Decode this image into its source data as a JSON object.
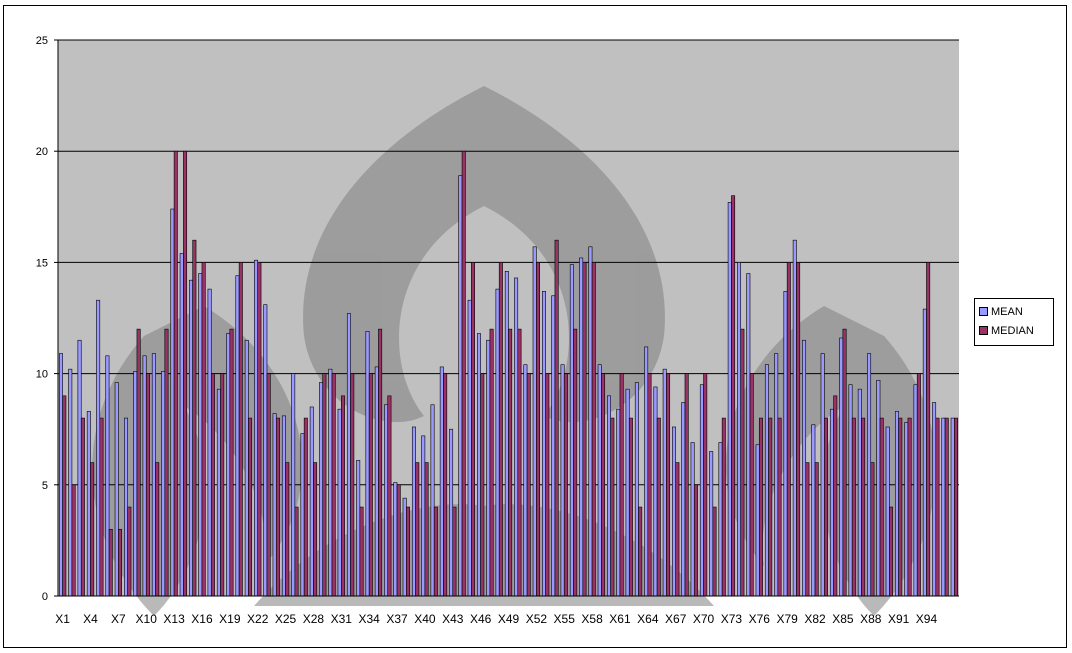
{
  "chart_data": {
    "type": "bar",
    "categories": [
      "X1",
      "X2",
      "X3",
      "X4",
      "X5",
      "X6",
      "X7",
      "X8",
      "X9",
      "X10",
      "X11",
      "X12",
      "X13",
      "X14",
      "X15",
      "X16",
      "X17",
      "X18",
      "X19",
      "X20",
      "X21",
      "X22",
      "X23",
      "X24",
      "X25",
      "X26",
      "X27",
      "X28",
      "X29",
      "X30",
      "X31",
      "X32",
      "X33",
      "X34",
      "X35",
      "X36",
      "X37",
      "X38",
      "X39",
      "X40",
      "X41",
      "X42",
      "X43",
      "X44",
      "X45",
      "X46",
      "X47",
      "X48",
      "X49",
      "X50",
      "X51",
      "X52",
      "X53",
      "X54",
      "X55",
      "X56",
      "X57",
      "X58",
      "X59",
      "X60",
      "X61",
      "X62",
      "X63",
      "X64",
      "X65",
      "X66",
      "X67",
      "X68",
      "X69",
      "X70",
      "X71",
      "X72",
      "X73",
      "X74",
      "X75",
      "X76",
      "X77",
      "X78",
      "X79",
      "X80",
      "X81",
      "X82",
      "X83",
      "X84",
      "X85",
      "X86",
      "X87",
      "X88",
      "X89",
      "X90",
      "X91",
      "X92",
      "X93",
      "X94",
      "X95",
      "X96",
      "X97"
    ],
    "visible_tick_labels": [
      "X1",
      "X4",
      "X7",
      "X10",
      "X13",
      "X16",
      "X19",
      "X22",
      "X25",
      "X28",
      "X31",
      "X34",
      "X37",
      "X40",
      "X43",
      "X46",
      "X49",
      "X52",
      "X55",
      "X58",
      "X61",
      "X64",
      "X67",
      "X70",
      "X73",
      "X76",
      "X79",
      "X82",
      "X85",
      "X88",
      "X91",
      "X94"
    ],
    "series": [
      {
        "name": "MEAN",
        "color": "#9999ff",
        "values": [
          10.9,
          10.2,
          11.5,
          8.3,
          13.3,
          10.8,
          9.6,
          8.0,
          10.1,
          10.8,
          10.9,
          10.1,
          17.4,
          15.4,
          14.2,
          14.5,
          13.8,
          9.3,
          11.8,
          14.4,
          11.5,
          15.1,
          13.1,
          8.2,
          8.1,
          10.0,
          7.3,
          8.5,
          9.6,
          10.2,
          8.4,
          12.7,
          6.1,
          11.9,
          10.3,
          8.6,
          5.1,
          4.4,
          7.6,
          7.2,
          8.6,
          10.3,
          7.5,
          18.9,
          13.3,
          11.8,
          11.5,
          13.8,
          14.6,
          14.3,
          10.4,
          15.7,
          13.7,
          13.5,
          10.4,
          14.9,
          15.2,
          15.7,
          10.4,
          9.0,
          8.4,
          9.3,
          9.6,
          11.2,
          9.4,
          10.2,
          7.6,
          8.7,
          6.9,
          9.5,
          6.5,
          6.9,
          17.7,
          15.0,
          14.5,
          6.8,
          10.4,
          10.9,
          13.7,
          16.0,
          11.5,
          7.7,
          10.9,
          8.4,
          11.6,
          9.5,
          9.3,
          10.9,
          9.7,
          7.6,
          8.3,
          7.8,
          9.5,
          12.9,
          8.7,
          8.0,
          8.0
        ]
      },
      {
        "name": "MEDIAN",
        "color": "#993366",
        "values": [
          9.0,
          5.0,
          8.0,
          6.0,
          8.0,
          3.0,
          3.0,
          4.0,
          12.0,
          10.0,
          6.0,
          12.0,
          20.0,
          20.0,
          16.0,
          15.0,
          10.0,
          10.0,
          12.0,
          15.0,
          8.0,
          15.0,
          10.0,
          8.0,
          6.0,
          4.0,
          8.0,
          6.0,
          10.0,
          10.0,
          9.0,
          10.0,
          4.0,
          10.0,
          12.0,
          9.0,
          5.0,
          4.0,
          6.0,
          6.0,
          4.0,
          10.0,
          4.0,
          20.0,
          15.0,
          10.0,
          12.0,
          15.0,
          12.0,
          12.0,
          10.0,
          15.0,
          10.0,
          16.0,
          10.0,
          12.0,
          15.0,
          15.0,
          10.0,
          8.0,
          10.0,
          8.0,
          4.0,
          10.0,
          8.0,
          10.0,
          6.0,
          10.0,
          5.0,
          10.0,
          4.0,
          8.0,
          18.0,
          12.0,
          10.0,
          8.0,
          8.0,
          8.0,
          15.0,
          15.0,
          6.0,
          6.0,
          8.0,
          9.0,
          12.0,
          8.0,
          8.0,
          6.0,
          8.0,
          4.0,
          8.0,
          8.0,
          10.0,
          15.0,
          8.0,
          8.0,
          8.0
        ]
      }
    ],
    "yticks": [
      0,
      5,
      10,
      15,
      20,
      25
    ],
    "ylim": [
      0,
      25
    ],
    "grid": true,
    "legend": "right",
    "colors": {
      "plot_background": "#c0c0c0",
      "gridline": "#000000",
      "bar_outline": "#000000",
      "axis_text": "#000000",
      "watermark": "#808080"
    }
  }
}
